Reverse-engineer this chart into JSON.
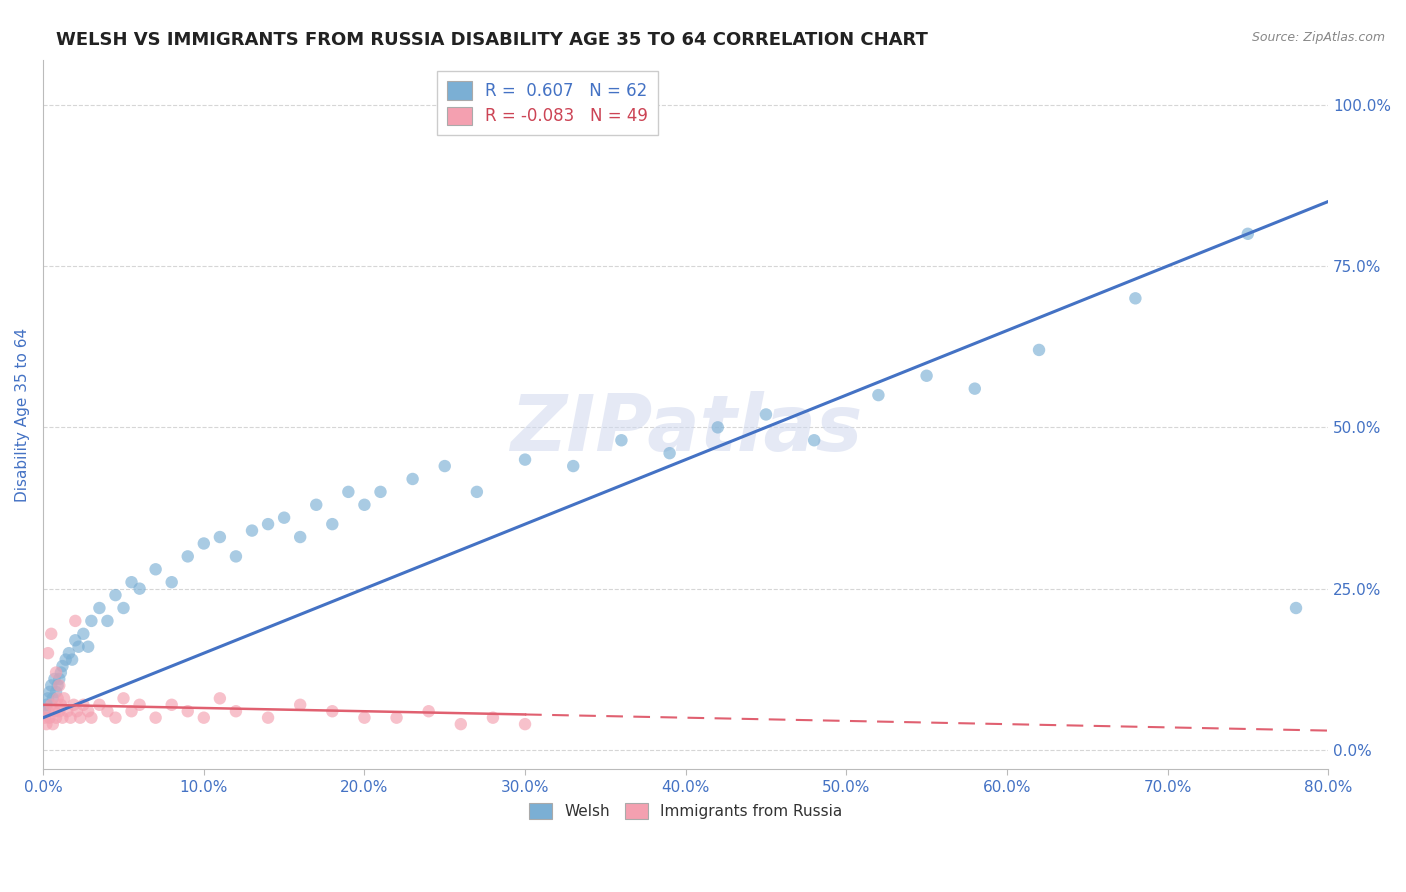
{
  "title": "WELSH VS IMMIGRANTS FROM RUSSIA DISABILITY AGE 35 TO 64 CORRELATION CHART",
  "source": "Source: ZipAtlas.com",
  "ylabel": "Disability Age 35 to 64",
  "xlim": [
    0.0,
    80.0
  ],
  "ylim": [
    -3.0,
    107.0
  ],
  "xticks": [
    0.0,
    10.0,
    20.0,
    30.0,
    40.0,
    50.0,
    60.0,
    70.0,
    80.0
  ],
  "yticks": [
    0.0,
    25.0,
    50.0,
    75.0,
    100.0
  ],
  "welsh_R": 0.607,
  "welsh_N": 62,
  "russia_R": -0.083,
  "russia_N": 49,
  "welsh_color": "#7BAFD4",
  "russia_color": "#F4A0B0",
  "welsh_line_color": "#4472C4",
  "russia_line_color": "#E06070",
  "background_color": "#FFFFFF",
  "grid_color": "#CCCCCC",
  "title_color": "#222222",
  "axis_label_color": "#4472C4",
  "legend_r1_color": "#4472C4",
  "legend_r2_color": "#CC4455",
  "watermark": "ZIPatlas",
  "title_fontsize": 13,
  "axis_fontsize": 11,
  "tick_fontsize": 11
}
